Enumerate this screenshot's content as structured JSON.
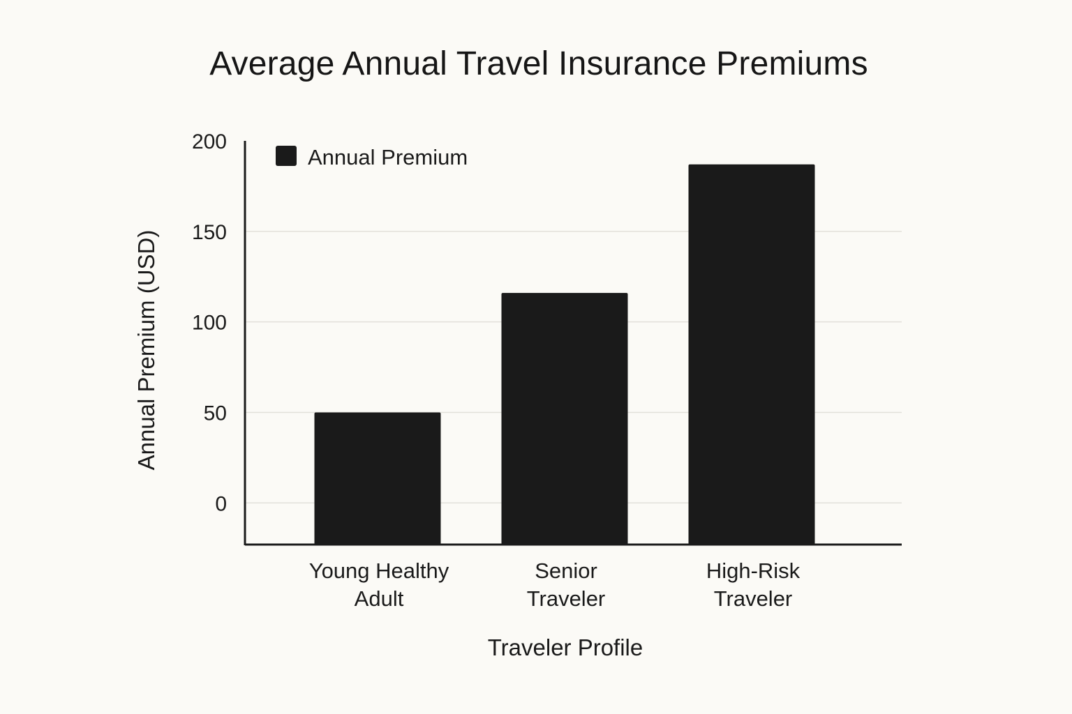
{
  "chart_data": {
    "type": "bar",
    "title": "Average Annual Travel Insurance Premiums",
    "xlabel": "Traveler Profile",
    "ylabel": "Annual Premium (USD)",
    "categories": [
      [
        "Young Healthy",
        "Adult"
      ],
      [
        "Senior",
        "Traveler"
      ],
      [
        "High-Risk",
        "Traveler"
      ]
    ],
    "series": [
      {
        "name": "Annual Premium",
        "values": [
          50,
          116,
          187
        ]
      }
    ],
    "yticks": [
      0,
      50,
      100,
      150,
      200
    ],
    "ylim": [
      -23,
      200
    ],
    "grid": true,
    "legend_position": "top-left",
    "colors": {
      "bar": "#1a1a1a",
      "grid": "#e2e0da",
      "axis": "#1a1a1a",
      "background": "#fbfaf6"
    }
  }
}
